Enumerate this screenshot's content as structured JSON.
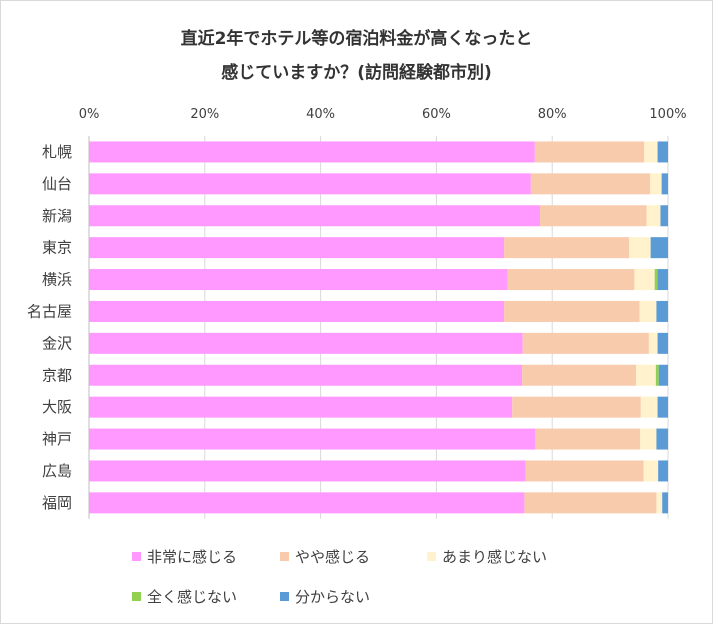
{
  "chart_data": {
    "type": "bar",
    "orientation": "horizontal",
    "stacked": true,
    "percent": true,
    "title_lines": [
      "直近2年でホテル等の宿泊料金が高くなったと",
      "感じていますか？(訪問経験都市別)"
    ],
    "categories": [
      "札幌",
      "仙台",
      "新潟",
      "東京",
      "横浜",
      "名古屋",
      "金沢",
      "京都",
      "大阪",
      "神戸",
      "広島",
      "福岡"
    ],
    "xticks": [
      "0%",
      "20%",
      "40%",
      "60%",
      "80%",
      "100%"
    ],
    "xlim": [
      0,
      100
    ],
    "series": [
      {
        "name": "非常に感じる",
        "color": "#ff99ff",
        "values": [
          77.0,
          76.3,
          77.9,
          71.7,
          72.3,
          71.7,
          74.9,
          74.8,
          73.1,
          77.1,
          75.4,
          75.2
        ]
      },
      {
        "name": "やや感じる",
        "color": "#f8cbad",
        "values": [
          18.9,
          20.6,
          18.4,
          21.6,
          21.9,
          23.4,
          21.8,
          19.7,
          22.2,
          18.1,
          20.4,
          22.8
        ]
      },
      {
        "name": "あまり感じない",
        "color": "#fff2cc",
        "values": [
          2.3,
          2.0,
          2.4,
          3.7,
          3.5,
          2.9,
          1.5,
          3.4,
          2.9,
          2.8,
          2.5,
          1.0
        ]
      },
      {
        "name": "全く感じない",
        "color": "#92d050",
        "values": [
          0.0,
          0.0,
          0.0,
          0.0,
          0.5,
          0.0,
          0.0,
          0.5,
          0.0,
          0.0,
          0.0,
          0.0
        ]
      },
      {
        "name": "分からない",
        "color": "#5b9bd5",
        "values": [
          1.8,
          1.1,
          1.3,
          3.0,
          1.8,
          2.0,
          1.8,
          1.6,
          1.8,
          2.0,
          1.7,
          1.0
        ]
      }
    ],
    "grid": true,
    "legend_position": "bottom"
  }
}
